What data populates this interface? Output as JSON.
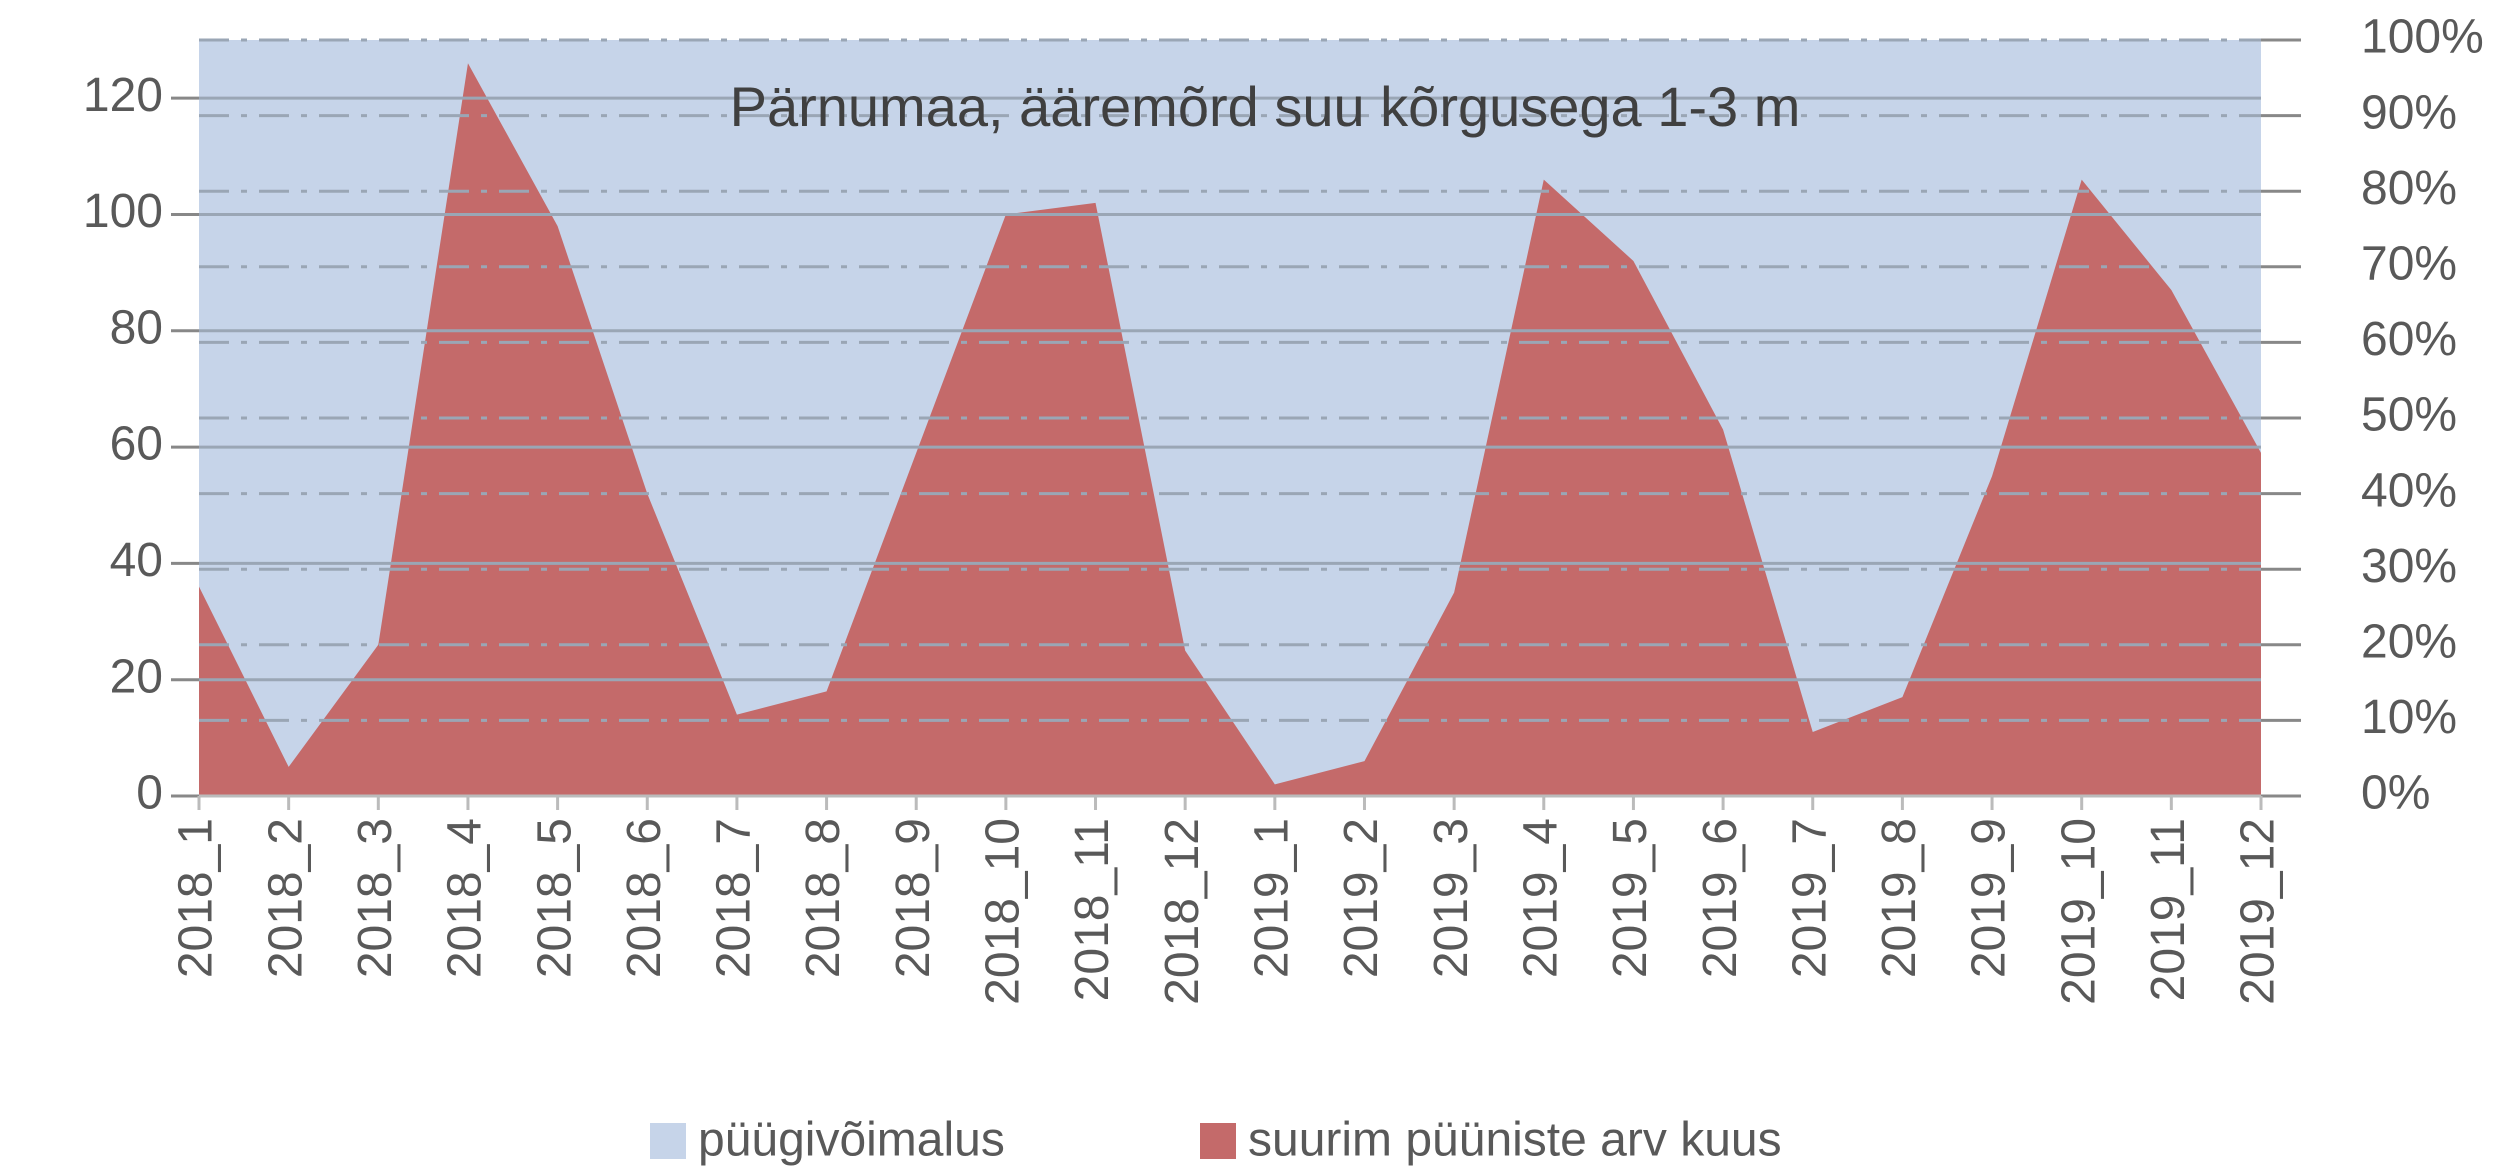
{
  "chart_data": {
    "type": "area",
    "title": "Pärnumaa, ääremõrd suu kõrgusega 1-3 m",
    "categories": [
      "2018_1",
      "2018_2",
      "2018_3",
      "2018_4",
      "2018_5",
      "2018_6",
      "2018_7",
      "2018_8",
      "2018_9",
      "2018_10",
      "2018_11",
      "2018_12",
      "2019_1",
      "2019_2",
      "2019_3",
      "2019_4",
      "2019_5",
      "2019_6",
      "2019_7",
      "2019_8",
      "2019_9",
      "2019_10",
      "2019_11",
      "2019_12"
    ],
    "series": [
      {
        "name": "püügivõimalus",
        "color": "#c6d4e9",
        "axis": "y2",
        "values": [
          100,
          100,
          100,
          100,
          100,
          100,
          100,
          100,
          100,
          100,
          100,
          100,
          100,
          100,
          100,
          100,
          100,
          100,
          100,
          100,
          100,
          100,
          100,
          100
        ]
      },
      {
        "name": "suurim püüniste arv kuus",
        "color": "#c46a6a",
        "axis": "y",
        "values": [
          36,
          5,
          26,
          126,
          98,
          52,
          14,
          18,
          59,
          100,
          102,
          25,
          2,
          6,
          35,
          106,
          92,
          63,
          11,
          17,
          55,
          106,
          87,
          59
        ]
      }
    ],
    "ylim": [
      0,
      130
    ],
    "yticks": [
      0,
      20,
      40,
      60,
      80,
      100,
      120
    ],
    "y2lim": [
      0,
      100
    ],
    "y2ticks": [
      {
        "value": 0,
        "label": "0%"
      },
      {
        "value": 10,
        "label": "10%"
      },
      {
        "value": 20,
        "label": "20%"
      },
      {
        "value": 30,
        "label": "30%"
      },
      {
        "value": 40,
        "label": "40%"
      },
      {
        "value": 50,
        "label": "50%"
      },
      {
        "value": 60,
        "label": "60%"
      },
      {
        "value": 70,
        "label": "70%"
      },
      {
        "value": 80,
        "label": "80%"
      },
      {
        "value": 90,
        "label": "90%"
      },
      {
        "value": 100,
        "label": "100%"
      }
    ],
    "grid": true,
    "legend": "bottom"
  }
}
